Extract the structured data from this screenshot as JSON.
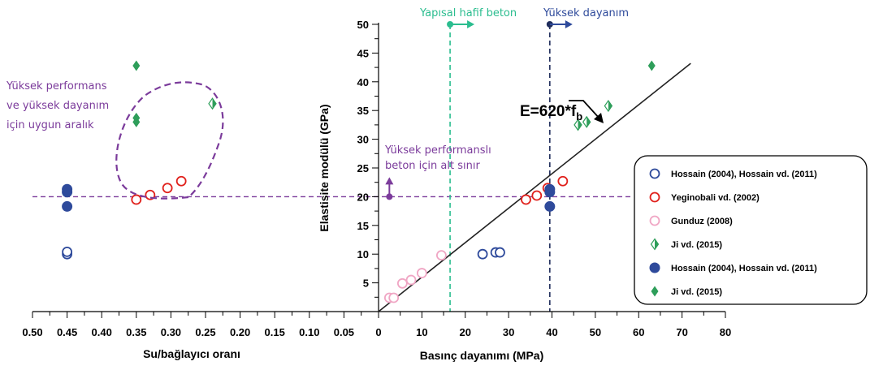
{
  "chart_data": [
    {
      "type": "scatter",
      "name": "left",
      "xlabel": "Su/bağlayıcı oranı",
      "xlim": [
        0.5,
        0.0
      ],
      "ylim": [
        0,
        50
      ],
      "xticks": [
        "0.50",
        "0.45",
        "0.40",
        "0.35",
        "0.30",
        "0.25",
        "0.20",
        "0.15",
        "0.10",
        "0.05",
        "0"
      ],
      "series": [
        {
          "key": "hossain_open",
          "points": [
            [
              0.45,
              10.0
            ],
            [
              0.45,
              10.4
            ]
          ]
        },
        {
          "key": "yeginobali",
          "points": [
            [
              0.35,
              19.5
            ],
            [
              0.33,
              20.3
            ],
            [
              0.305,
              21.5
            ],
            [
              0.285,
              22.7
            ]
          ]
        },
        {
          "key": "ji_open",
          "points": [
            [
              0.24,
              36.2
            ]
          ]
        },
        {
          "key": "hossain_filled",
          "points": [
            [
              0.45,
              18.3
            ],
            [
              0.45,
              20.8
            ],
            [
              0.45,
              21.3
            ]
          ]
        },
        {
          "key": "ji_filled",
          "points": [
            [
              0.35,
              42.8
            ],
            [
              0.35,
              33.0
            ],
            [
              0.35,
              33.7
            ]
          ]
        }
      ],
      "annotations": {
        "region_label": [
          "Yüksek performans",
          "ve yüksek dayanım",
          "için uygun aralık"
        ]
      }
    },
    {
      "type": "scatter",
      "name": "right",
      "xlabel": "Basınç dayanımı (MPa)",
      "ylabel": "Elastisite modülü (GPa)",
      "xlim": [
        0,
        80
      ],
      "ylim": [
        0,
        50
      ],
      "xticks": [
        0,
        10,
        20,
        30,
        40,
        50,
        60,
        70,
        80
      ],
      "yticks": [
        5,
        10,
        15,
        20,
        25,
        30,
        35,
        40,
        45,
        50
      ],
      "series": [
        {
          "key": "hossain_open",
          "points": [
            [
              24,
              10.0
            ],
            [
              27,
              10.3
            ],
            [
              28,
              10.3
            ]
          ]
        },
        {
          "key": "yeginobali",
          "points": [
            [
              34,
              19.5
            ],
            [
              36.5,
              20.2
            ],
            [
              39,
              21.5
            ],
            [
              42.5,
              22.7
            ]
          ]
        },
        {
          "key": "gunduz",
          "points": [
            [
              2.5,
              2.4
            ],
            [
              3.5,
              2.4
            ],
            [
              5.5,
              4.9
            ],
            [
              7.5,
              5.5
            ],
            [
              10,
              6.7
            ],
            [
              14.5,
              9.8
            ]
          ]
        },
        {
          "key": "ji_open",
          "points": [
            [
              46,
              32.5
            ],
            [
              48,
              33.0
            ],
            [
              53,
              35.8
            ]
          ]
        },
        {
          "key": "hossain_filled",
          "points": [
            [
              39.5,
              18.3
            ],
            [
              39.5,
              20.8
            ],
            [
              39.5,
              21.3
            ]
          ]
        },
        {
          "key": "ji_filled",
          "points": [
            [
              63,
              42.8
            ]
          ]
        }
      ],
      "fit_line": {
        "label": "E=620*f",
        "label_sub": "b",
        "points": [
          [
            0,
            0
          ],
          [
            72,
            43.2
          ]
        ]
      },
      "annotations": {
        "hafif": {
          "label": "Yapısal hafif beton",
          "x": 16.5
        },
        "dayanim": {
          "label": "Yüksek dayanım",
          "x": 39.5
        },
        "performans": {
          "label": [
            "Yüksek performanslı",
            "beton için alt sınır"
          ],
          "x": 2.5,
          "y": 20
        }
      },
      "hline_y": 20
    }
  ],
  "legend": {
    "placement": "right",
    "entries": [
      {
        "key": "hossain_open",
        "label": "Hossain (2004), Hossain vd. (2011)",
        "color": "#2e4a9b",
        "marker": "open-circle"
      },
      {
        "key": "yeginobali",
        "label": "Yeginobali vd. (2002)",
        "color": "#e0201b",
        "marker": "open-circle"
      },
      {
        "key": "gunduz",
        "label": "Gunduz (2008)",
        "color": "#f0a6c4",
        "marker": "open-circle"
      },
      {
        "key": "ji_open",
        "label": "Ji vd. (2015)",
        "color": "#2e9e5a",
        "marker": "half-diamond"
      },
      {
        "key": "hossain_filled",
        "label": "Hossain (2004), Hossain vd. (2011)",
        "color": "#2e4a9b",
        "marker": "filled-circle"
      },
      {
        "key": "ji_filled",
        "label": "Ji vd. (2015)",
        "color": "#2e9e5a",
        "marker": "filled-diamond"
      }
    ]
  },
  "colors": {
    "purple": "#7b3b9b",
    "teal": "#2bbd8f",
    "navy": "#1f2d5c",
    "axis": "#000000"
  }
}
